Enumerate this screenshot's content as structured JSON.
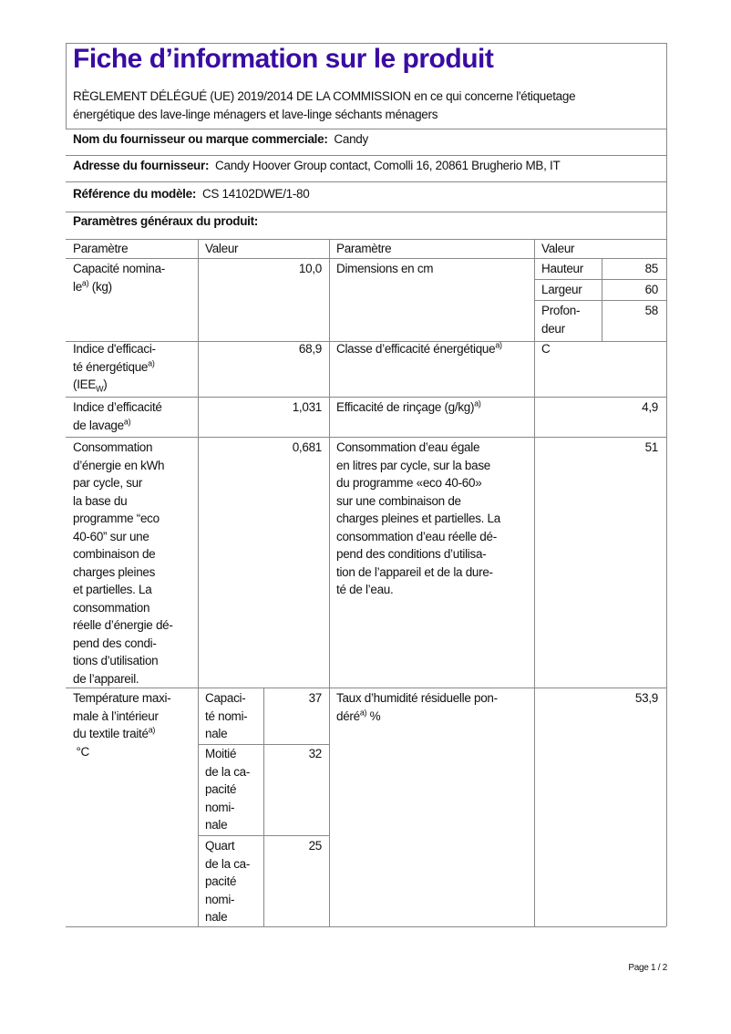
{
  "title": "Fiche d’information sur le produit",
  "regulation": "RÈGLEMENT DÉLÉGUÉ (UE) 2019/2014 DE LA COMMISSION en ce qui concerne l'étiquetage\nénergétique des lave-linge ménagers et lave-linge séchants ménagers",
  "supplier_name": {
    "label": "Nom du fournisseur ou marque commerciale:",
    "value": "Candy"
  },
  "supplier_address": {
    "label": "Adresse du fournisseur:",
    "value": "Candy Hoover Group contact, Comolli 16, 20861 Brugherio MB, IT"
  },
  "model_ref": {
    "label": "Référence du modèle:",
    "value": "CS 14102DWE/1-80"
  },
  "general_params_label": "Paramètres généraux du produit:",
  "table": {
    "headers": [
      "Paramètre",
      "Valeur",
      "Paramètre",
      "Valeur"
    ],
    "sup": "a)",
    "capacity": {
      "label": "Capacité nomina-\nle",
      "unit": " (kg)",
      "value": "10,0"
    },
    "dimensions": {
      "label": "Dimensions en cm",
      "height_label": "Hauteur",
      "height": "85",
      "width_label": "Largeur",
      "width": "60",
      "depth_label": "Profon-\ndeur",
      "depth": "58"
    },
    "eei": {
      "label": "Indice d'efficaci-\nté énergétique",
      "unit_pre": " (IEE",
      "unit_sub": "W",
      "unit_post": ")",
      "value": "68,9"
    },
    "energy_class": {
      "label": "Classe d’efficacité énergétique",
      "value": "C"
    },
    "washing": {
      "label": "Indice d’efficacité\nde lavage",
      "value": "1,031"
    },
    "rinsing": {
      "label": "Efficacité de rinçage (g/kg)",
      "value": "4,9"
    },
    "energy": {
      "label": "Consommation\nd’énergie en kWh\npar cycle, sur\nla base du\nprogramme “eco\n40-60” sur une\ncombinaison de\ncharges pleines\net partielles. La\nconsommation\nréelle d’énergie dé-\npend des condi-\ntions d’utilisation\nde l’appareil.",
      "value": "0,681"
    },
    "water": {
      "label": "Consommation d’eau égale\nen litres par cycle, sur la base\ndu programme «eco 40-60»\nsur une combinaison de\ncharges pleines et partielles. La\nconsommation d’eau réelle dé-\npend des conditions d’utilisa-\ntion de l’appareil et de la dure-\nté de l’eau.",
      "value": "51"
    },
    "temperature": {
      "label": "Température maxi-\nmale à l’intérieur\ndu textile traité",
      "unit": "°C",
      "rows": [
        {
          "label": "Capaci-\nté nomi-\nnale",
          "value": "37"
        },
        {
          "label": "Moitié\nde la ca-\npacité\nnomi-\nnale",
          "value": "32"
        },
        {
          "label": "Quart\nde la ca-\npacité\nnomi-\nnale",
          "value": "25"
        }
      ]
    },
    "moisture": {
      "label": "Taux d’humidité résiduelle pon-\ndéré",
      "unit": " %",
      "value": "53,9"
    }
  },
  "footer": "Page 1 / 2"
}
